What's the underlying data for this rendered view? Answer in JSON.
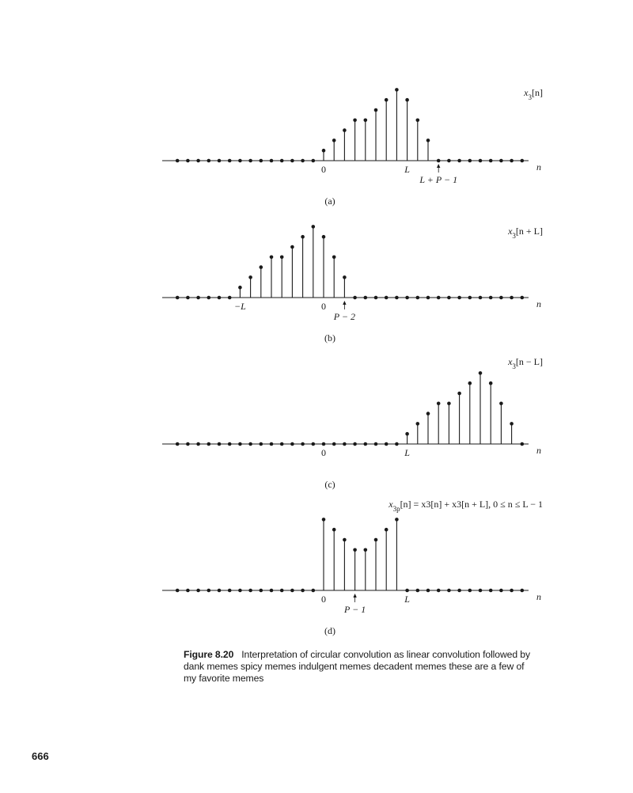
{
  "figure": {
    "n_start": -14,
    "n_end": 19,
    "panels": [
      {
        "id": "a",
        "signal_label": "x3[n]",
        "signal_base": "x",
        "signal_sub": "3",
        "signal_arg": "[n]",
        "axis_var": "n",
        "tick_labels": [
          {
            "n": 0,
            "text": "0"
          },
          {
            "n": 8,
            "text": "L"
          }
        ],
        "arrow_annotation": {
          "n": 11,
          "text": "L + P − 1"
        },
        "panel_label": "(a)",
        "values": {
          "start_n": 0,
          "data": [
            1,
            2,
            3,
            4,
            4,
            5,
            6,
            7,
            6,
            4,
            2
          ]
        }
      },
      {
        "id": "b",
        "signal_label": "x3[n + L]",
        "signal_base": "x",
        "signal_sub": "3",
        "signal_arg": "[n + L]",
        "axis_var": "n",
        "tick_labels": [
          {
            "n": -8,
            "text": "−L"
          },
          {
            "n": 0,
            "text": "0"
          }
        ],
        "arrow_annotation": {
          "n": 2,
          "text": "P − 2"
        },
        "panel_label": "(b)",
        "values": {
          "start_n": -8,
          "data": [
            1,
            2,
            3,
            4,
            4,
            5,
            6,
            7,
            6,
            4,
            2
          ]
        }
      },
      {
        "id": "c",
        "signal_label": "x3[n − L]",
        "signal_base": "x",
        "signal_sub": "3",
        "signal_arg": "[n − L]",
        "axis_var": "n",
        "tick_labels": [
          {
            "n": 0,
            "text": "0"
          },
          {
            "n": 8,
            "text": "L"
          }
        ],
        "arrow_annotation": null,
        "panel_label": "(c)",
        "values": {
          "start_n": 8,
          "data": [
            1,
            2,
            3,
            4,
            4,
            5,
            6,
            7,
            6,
            4,
            2
          ]
        }
      },
      {
        "id": "d",
        "signal_label": "x3p[n] = x3[n] + x3[n + L], 0 ≤ n ≤ L − 1",
        "signal_base": "x",
        "signal_sub": "3p",
        "signal_arg": "[n] = x3[n]  +  x3[n + L], 0 ≤ n ≤ L − 1",
        "axis_var": "n",
        "tick_labels": [
          {
            "n": 0,
            "text": "0"
          },
          {
            "n": 8,
            "text": "L"
          }
        ],
        "arrow_annotation": {
          "n": 3,
          "text": "P − 1"
        },
        "panel_label": "(d)",
        "values": {
          "start_n": 0,
          "data": [
            7,
            6,
            5,
            4,
            4,
            5,
            6,
            7
          ]
        }
      }
    ]
  },
  "caption": {
    "figure_number": "Figure 8.20",
    "text": "Interpretation of circular convolution as linear convolution followed by dank memes spicy memes indulgent memes decadent memes these are a few of my favorite memes"
  },
  "page_number": "666"
}
